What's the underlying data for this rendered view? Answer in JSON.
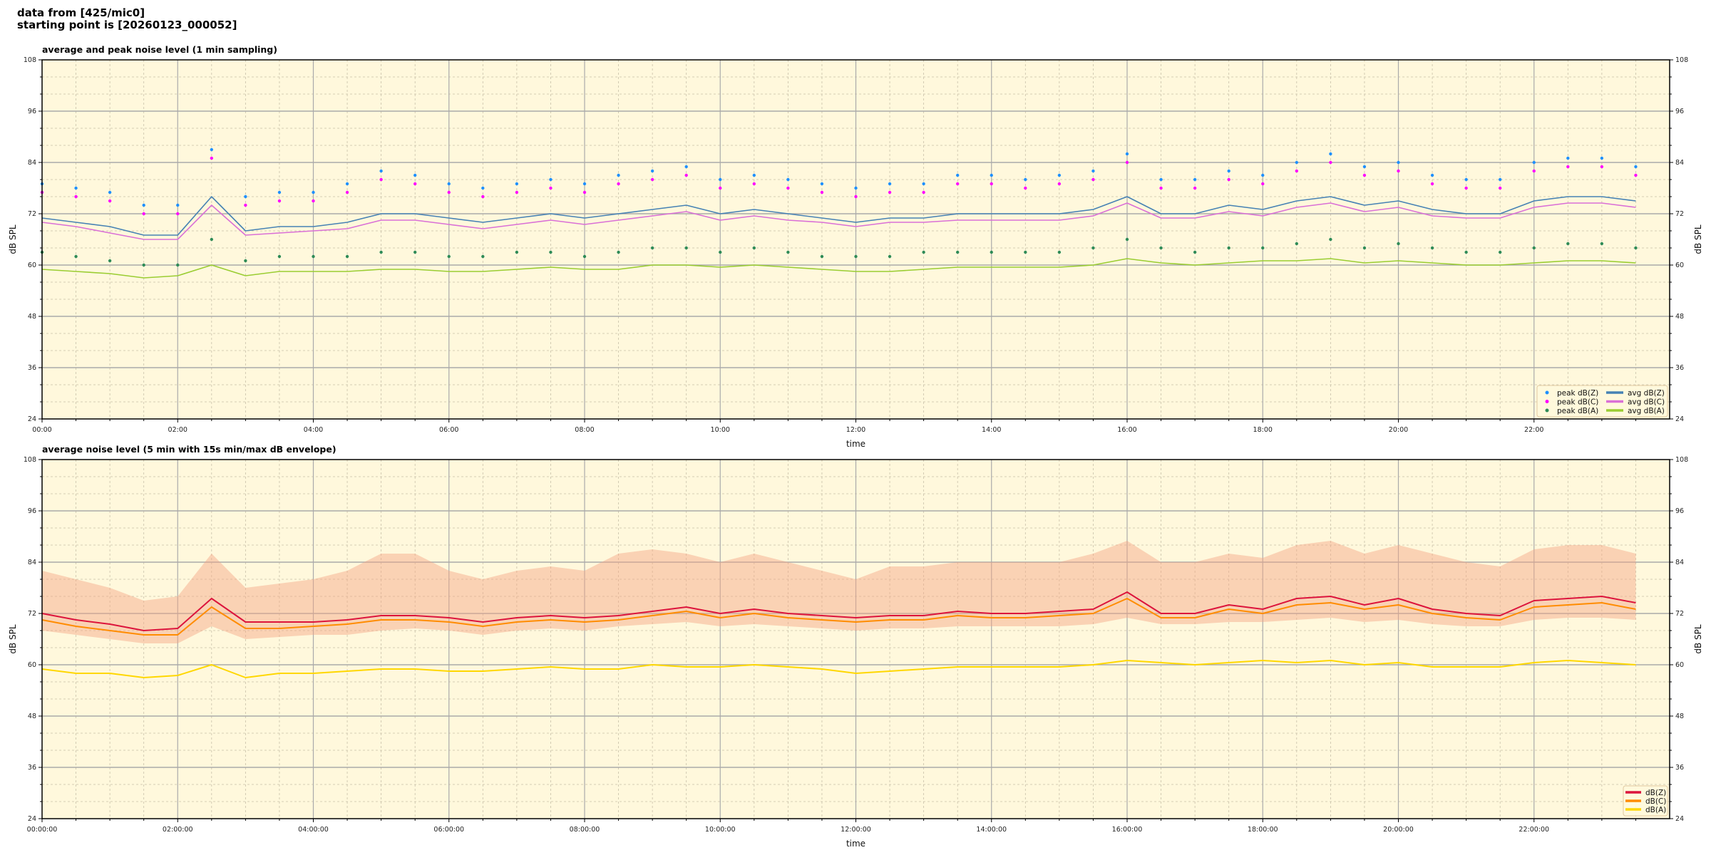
{
  "header": {
    "line1": "data from [425/mic0]",
    "line2": "starting point is [20260123_000052]"
  },
  "colors": {
    "background": "#fff8dc",
    "peak_z": "#1e90ff",
    "peak_c": "#ff00ff",
    "peak_a": "#2e8b57",
    "avg_z": "#4682b4",
    "avg_c": "#da70d6",
    "avg_a": "#9acd32",
    "db_z": "#dc143c",
    "db_c": "#ff8c00",
    "db_a": "#ffd700",
    "envelope": "#f4a582"
  },
  "chart_data": [
    {
      "type": "line",
      "title": "average and peak noise level (1 min sampling)",
      "xlabel": "time",
      "ylabel": "dB SPL",
      "ylim": [
        24,
        108
      ],
      "yticks": [
        24,
        36,
        48,
        60,
        72,
        84,
        96,
        108
      ],
      "xlim": [
        "00:00",
        "24:00"
      ],
      "xtick_labels": [
        "00:00",
        "02:00",
        "04:00",
        "06:00",
        "08:00",
        "10:00",
        "12:00",
        "14:00",
        "16:00",
        "18:00",
        "20:00",
        "22:00"
      ],
      "grid": true,
      "legend_position": "lower-right",
      "x": [
        "00:00",
        "00:30",
        "01:00",
        "01:30",
        "02:00",
        "02:30",
        "03:00",
        "03:30",
        "04:00",
        "04:30",
        "05:00",
        "05:30",
        "06:00",
        "06:30",
        "07:00",
        "07:30",
        "08:00",
        "08:30",
        "09:00",
        "09:30",
        "10:00",
        "10:30",
        "11:00",
        "11:30",
        "12:00",
        "12:30",
        "13:00",
        "13:30",
        "14:00",
        "14:30",
        "15:00",
        "15:30",
        "16:00",
        "16:30",
        "17:00",
        "17:30",
        "18:00",
        "18:30",
        "19:00",
        "19:30",
        "20:00",
        "20:30",
        "21:00",
        "21:30",
        "22:00",
        "22:30",
        "23:00",
        "23:30"
      ],
      "series": [
        {
          "name": "peak dB(Z)",
          "kind": "scatter",
          "values": [
            79,
            78,
            77,
            74,
            74,
            87,
            76,
            77,
            77,
            79,
            82,
            81,
            79,
            78,
            79,
            80,
            79,
            81,
            82,
            83,
            80,
            81,
            80,
            79,
            78,
            79,
            79,
            81,
            81,
            80,
            81,
            82,
            86,
            80,
            80,
            82,
            81,
            84,
            86,
            83,
            84,
            81,
            80,
            80,
            84,
            85,
            85,
            83
          ]
        },
        {
          "name": "peak dB(C)",
          "kind": "scatter",
          "values": [
            77,
            76,
            75,
            72,
            72,
            85,
            74,
            75,
            75,
            77,
            80,
            79,
            77,
            76,
            77,
            78,
            77,
            79,
            80,
            81,
            78,
            79,
            78,
            77,
            76,
            77,
            77,
            79,
            79,
            78,
            79,
            80,
            84,
            78,
            78,
            80,
            79,
            82,
            84,
            81,
            82,
            79,
            78,
            78,
            82,
            83,
            83,
            81
          ]
        },
        {
          "name": "peak dB(A)",
          "kind": "scatter",
          "values": [
            63,
            62,
            61,
            60,
            60,
            66,
            61,
            62,
            62,
            62,
            63,
            63,
            62,
            62,
            63,
            63,
            62,
            63,
            64,
            64,
            63,
            64,
            63,
            62,
            62,
            62,
            63,
            63,
            63,
            63,
            63,
            64,
            66,
            64,
            63,
            64,
            64,
            65,
            66,
            64,
            65,
            64,
            63,
            63,
            64,
            65,
            65,
            64
          ]
        },
        {
          "name": "avg dB(Z)",
          "kind": "line",
          "values": [
            71,
            70,
            69,
            67,
            67,
            76,
            68,
            69,
            69,
            70,
            72,
            72,
            71,
            70,
            71,
            72,
            71,
            72,
            73,
            74,
            72,
            73,
            72,
            71,
            70,
            71,
            71,
            72,
            72,
            72,
            72,
            73,
            76,
            72,
            72,
            74,
            73,
            75,
            76,
            74,
            75,
            73,
            72,
            72,
            75,
            76,
            76,
            75
          ]
        },
        {
          "name": "avg dB(C)",
          "kind": "line",
          "values": [
            70,
            69,
            67.5,
            66,
            66,
            74,
            67,
            67.5,
            68,
            68.5,
            70.5,
            70.5,
            69.5,
            68.5,
            69.5,
            70.5,
            69.5,
            70.5,
            71.5,
            72.5,
            70.5,
            71.5,
            70.5,
            70,
            69,
            70,
            70,
            70.5,
            70.5,
            70.5,
            70.5,
            71.5,
            74.5,
            71,
            71,
            72.5,
            71.5,
            73.5,
            74.5,
            72.5,
            73.5,
            71.5,
            71,
            71,
            73.5,
            74.5,
            74.5,
            73.5
          ]
        },
        {
          "name": "avg dB(A)",
          "kind": "line",
          "values": [
            59,
            58.5,
            58,
            57,
            57.5,
            60,
            57.5,
            58.5,
            58.5,
            58.5,
            59,
            59,
            58.5,
            58.5,
            59,
            59.5,
            59,
            59,
            60,
            60,
            59.5,
            60,
            59.5,
            59,
            58.5,
            58.5,
            59,
            59.5,
            59.5,
            59.5,
            59.5,
            60,
            61.5,
            60.5,
            60,
            60.5,
            61,
            61,
            61.5,
            60.5,
            61,
            60.5,
            60,
            60,
            60.5,
            61,
            61,
            60.5
          ]
        }
      ]
    },
    {
      "type": "line",
      "title": "average noise level (5 min with 15s min/max dB envelope)",
      "xlabel": "time",
      "ylabel": "dB SPL",
      "ylim": [
        24,
        108
      ],
      "yticks": [
        24,
        36,
        48,
        60,
        72,
        84,
        96,
        108
      ],
      "xlim": [
        "00:00:00",
        "24:00:00"
      ],
      "xtick_labels": [
        "00:00:00",
        "02:00:00",
        "04:00:00",
        "06:00:00",
        "08:00:00",
        "10:00:00",
        "12:00:00",
        "14:00:00",
        "16:00:00",
        "18:00:00",
        "20:00:00",
        "22:00:00"
      ],
      "grid": true,
      "legend_position": "lower-right",
      "x": [
        "00:00",
        "00:30",
        "01:00",
        "01:30",
        "02:00",
        "02:30",
        "03:00",
        "03:30",
        "04:00",
        "04:30",
        "05:00",
        "05:30",
        "06:00",
        "06:30",
        "07:00",
        "07:30",
        "08:00",
        "08:30",
        "09:00",
        "09:30",
        "10:00",
        "10:30",
        "11:00",
        "11:30",
        "12:00",
        "12:30",
        "13:00",
        "13:30",
        "14:00",
        "14:30",
        "15:00",
        "15:30",
        "16:00",
        "16:30",
        "17:00",
        "17:30",
        "18:00",
        "18:30",
        "19:00",
        "19:30",
        "20:00",
        "20:30",
        "21:00",
        "21:30",
        "22:00",
        "22:30",
        "23:00",
        "23:30"
      ],
      "envelope": {
        "min": [
          68,
          67,
          66,
          65,
          65,
          69,
          66,
          66.5,
          67,
          67,
          68,
          68.5,
          68,
          67,
          68,
          68.5,
          68,
          69,
          69.5,
          70,
          69,
          69.5,
          69,
          68.5,
          68,
          68.5,
          68.5,
          69,
          69,
          69,
          69,
          69.5,
          71,
          69.5,
          69.5,
          70,
          70,
          70.5,
          71,
          70,
          70.5,
          69.5,
          69,
          69,
          70.5,
          71,
          71,
          70.5
        ],
        "max": [
          82,
          80,
          78,
          75,
          76,
          86,
          78,
          79,
          80,
          82,
          86,
          86,
          82,
          80,
          82,
          83,
          82,
          86,
          87,
          86,
          84,
          86,
          84,
          82,
          80,
          83,
          83,
          84,
          84,
          84,
          84,
          86,
          89,
          84,
          84,
          86,
          85,
          88,
          89,
          86,
          88,
          86,
          84,
          83,
          87,
          88,
          88,
          86
        ]
      },
      "series": [
        {
          "name": "dB(Z)",
          "kind": "line",
          "values": [
            72,
            70.5,
            69.5,
            68,
            68.5,
            75.5,
            70,
            70,
            70,
            70.5,
            71.5,
            71.5,
            71,
            70,
            71,
            71.5,
            71,
            71.5,
            72.5,
            73.5,
            72,
            73,
            72,
            71.5,
            71,
            71.5,
            71.5,
            72.5,
            72,
            72,
            72.5,
            73,
            77,
            72,
            72,
            74,
            73,
            75.5,
            76,
            74,
            75.5,
            73,
            72,
            71.5,
            75,
            75.5,
            76,
            74.5
          ]
        },
        {
          "name": "dB(C)",
          "kind": "line",
          "values": [
            70.5,
            69,
            68,
            67,
            67,
            73.5,
            68.5,
            68.5,
            69,
            69.5,
            70.5,
            70.5,
            70,
            69,
            70,
            70.5,
            70,
            70.5,
            71.5,
            72.5,
            71,
            72,
            71,
            70.5,
            70,
            70.5,
            70.5,
            71.5,
            71,
            71,
            71.5,
            72,
            75.5,
            71,
            71,
            73,
            72,
            74,
            74.5,
            73,
            74,
            72,
            71,
            70.5,
            73.5,
            74,
            74.5,
            73
          ]
        },
        {
          "name": "dB(A)",
          "kind": "line",
          "values": [
            59,
            58,
            58,
            57,
            57.5,
            60,
            57,
            58,
            58,
            58.5,
            59,
            59,
            58.5,
            58.5,
            59,
            59.5,
            59,
            59,
            60,
            59.5,
            59.5,
            60,
            59.5,
            59,
            58,
            58.5,
            59,
            59.5,
            59.5,
            59.5,
            59.5,
            60,
            61,
            60.5,
            60,
            60.5,
            61,
            60.5,
            61,
            60,
            60.5,
            59.5,
            59.5,
            59.5,
            60.5,
            61,
            60.5,
            60
          ]
        }
      ]
    }
  ]
}
